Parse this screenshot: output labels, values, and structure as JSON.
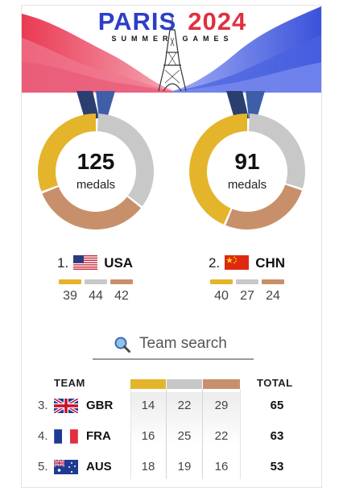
{
  "header": {
    "title_left": "PARIS",
    "title_right": "2024",
    "subtitle_left": "SUMMER",
    "subtitle_right": "GAMES"
  },
  "colors": {
    "gold": "#e4b52b",
    "silver": "#c8c8c8",
    "bronze": "#c8906a",
    "blue": "#2c3fc6",
    "red": "#e0303f"
  },
  "top_two": [
    {
      "rank": "1.",
      "code": "USA",
      "total": "125",
      "unit": "medals",
      "gold": 39,
      "silver": 44,
      "bronze": 42,
      "flag_icon": "usa-flag-icon"
    },
    {
      "rank": "2.",
      "code": "CHN",
      "total": "91",
      "unit": "medals",
      "gold": 40,
      "silver": 27,
      "bronze": 24,
      "flag_icon": "china-flag-icon"
    }
  ],
  "search": {
    "placeholder": "Team search",
    "icon": "magnifier-icon"
  },
  "table": {
    "header_team": "TEAM",
    "header_total": "TOTAL",
    "rows": [
      {
        "rank": "3.",
        "code": "GBR",
        "gold": "14",
        "silver": "22",
        "bronze": "29",
        "total": "65",
        "flag_icon": "uk-flag-icon"
      },
      {
        "rank": "4.",
        "code": "FRA",
        "gold": "16",
        "silver": "25",
        "bronze": "22",
        "total": "63",
        "flag_icon": "france-flag-icon"
      },
      {
        "rank": "5.",
        "code": "AUS",
        "gold": "18",
        "silver": "19",
        "bronze": "16",
        "total": "53",
        "flag_icon": "australia-flag-icon"
      }
    ]
  }
}
